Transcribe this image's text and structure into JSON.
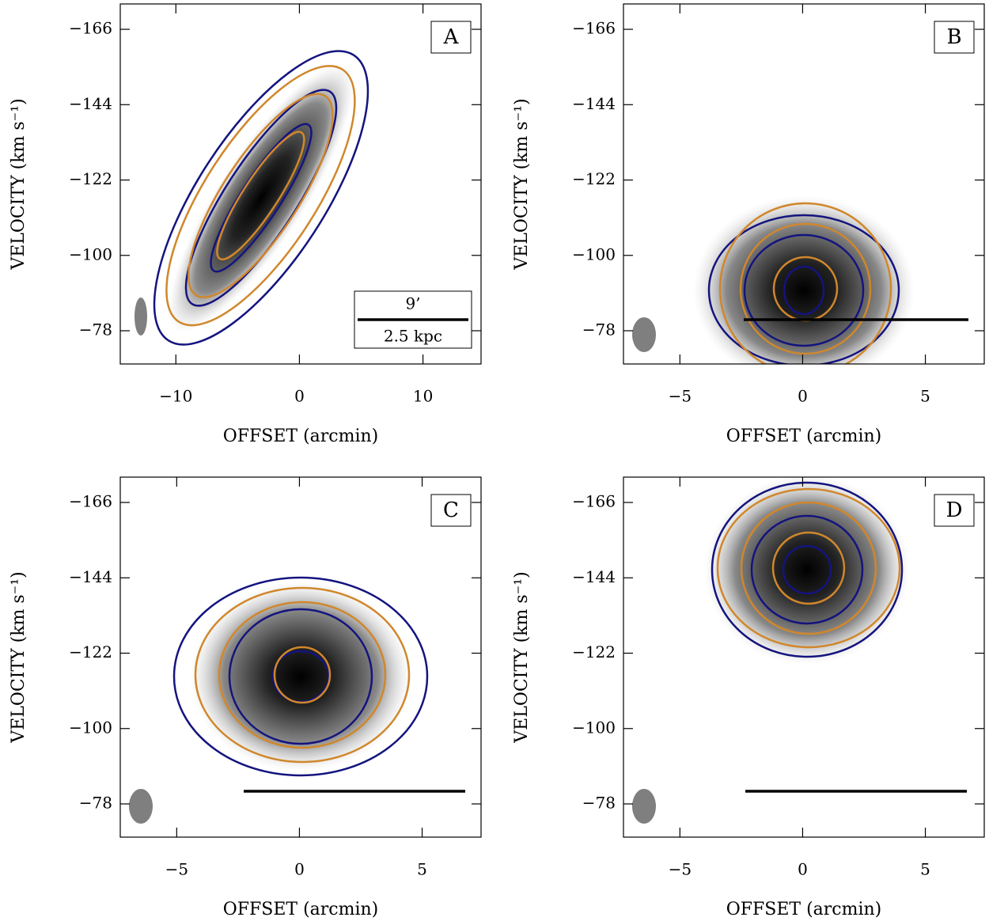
{
  "chart_data": [
    {
      "type": "pv-diagram",
      "panel_label": "A",
      "xlabel": "OFFSET (arcmin)",
      "ylabel": "VELOCITY (km s⁻¹)",
      "xlim": [
        -14.5,
        14.7
      ],
      "xticks": [
        {
          "value": -10,
          "label": "−10"
        },
        0,
        10
      ],
      "ylim": [
        -68.3,
        -173.4
      ],
      "yticks": [
        {
          "value": -166,
          "label": "−166"
        },
        {
          "value": -144,
          "label": "−144"
        },
        {
          "value": -122,
          "label": "−122"
        },
        {
          "value": -100,
          "label": "−100"
        },
        {
          "value": -78,
          "label": "−78"
        }
      ],
      "annotations": [
        "9’",
        "2.5 kpc"
      ]
    },
    {
      "type": "pv-diagram",
      "panel_label": "B",
      "xlabel": "OFFSET (arcmin)",
      "ylabel": "VELOCITY (km s⁻¹)",
      "xlim": [
        -7.3,
        7.4
      ],
      "xticks": [
        {
          "value": -5,
          "label": "−5"
        },
        0,
        5
      ],
      "ylim": [
        -68.3,
        -173.4
      ],
      "yticks": [
        {
          "value": -166,
          "label": "−166"
        },
        {
          "value": -144,
          "label": "−144"
        },
        {
          "value": -122,
          "label": "−122"
        },
        {
          "value": -100,
          "label": "−100"
        },
        {
          "value": -78,
          "label": "−78"
        }
      ]
    },
    {
      "type": "pv-diagram",
      "panel_label": "C",
      "xlabel": "OFFSET (arcmin)",
      "ylabel": "VELOCITY (km s⁻¹)",
      "xlim": [
        -7.3,
        7.4
      ],
      "xticks": [
        {
          "value": -5,
          "label": "−5"
        },
        0,
        5
      ],
      "ylim": [
        -68.3,
        -173.4
      ],
      "yticks": [
        {
          "value": -166,
          "label": "−166"
        },
        {
          "value": -144,
          "label": "−144"
        },
        {
          "value": -122,
          "label": "−122"
        },
        {
          "value": -100,
          "label": "−100"
        },
        {
          "value": -78,
          "label": "−78"
        }
      ]
    },
    {
      "type": "pv-diagram",
      "panel_label": "D",
      "xlabel": "OFFSET (arcmin)",
      "ylabel": "VELOCITY (km s⁻¹)",
      "xlim": [
        -7.3,
        7.4
      ],
      "xticks": [
        {
          "value": -5,
          "label": "−5"
        },
        0,
        5
      ],
      "ylim": [
        -68.3,
        -173.4
      ],
      "yticks": [
        {
          "value": -166,
          "label": "−166"
        },
        {
          "value": -144,
          "label": "−144"
        },
        {
          "value": -122,
          "label": "−122"
        },
        {
          "value": -100,
          "label": "−100"
        },
        {
          "value": -78,
          "label": "−78"
        }
      ]
    }
  ]
}
